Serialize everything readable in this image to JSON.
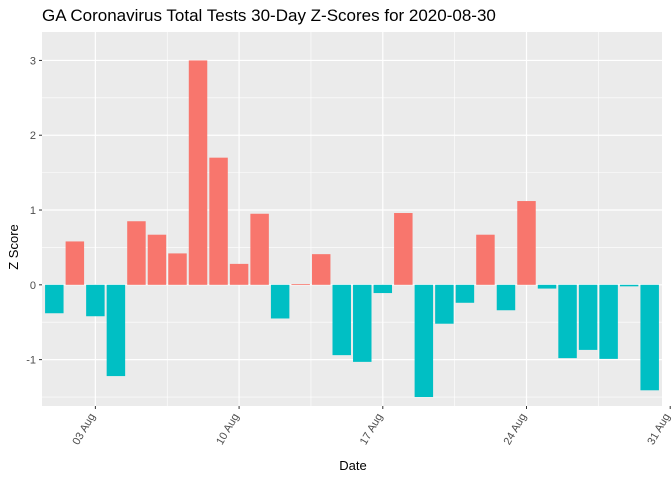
{
  "chart_data": {
    "type": "bar",
    "title": "GA Coronavirus Total Tests 30-Day Z-Scores for 2020-08-30",
    "xlabel": "Date",
    "ylabel": "Z Score",
    "x_tick_labels": [
      "03 Aug",
      "10 Aug",
      "17 Aug",
      "24 Aug",
      "31 Aug"
    ],
    "y_tick_labels": [
      "-1",
      "0",
      "1",
      "2",
      "3"
    ],
    "ylim": [
      -1.62,
      3.38
    ],
    "grid": true,
    "legend": "none",
    "colors": {
      "positive": "#F8766D",
      "negative": "#00BFC4",
      "panel": "#EBEBEB",
      "grid": "#FFFFFF"
    },
    "x": [
      "2020-08-01",
      "2020-08-02",
      "2020-08-03",
      "2020-08-04",
      "2020-08-05",
      "2020-08-06",
      "2020-08-07",
      "2020-08-08",
      "2020-08-09",
      "2020-08-10",
      "2020-08-11",
      "2020-08-12",
      "2020-08-13",
      "2020-08-14",
      "2020-08-15",
      "2020-08-16",
      "2020-08-17",
      "2020-08-18",
      "2020-08-19",
      "2020-08-20",
      "2020-08-21",
      "2020-08-22",
      "2020-08-23",
      "2020-08-24",
      "2020-08-25",
      "2020-08-26",
      "2020-08-27",
      "2020-08-28",
      "2020-08-29",
      "2020-08-30"
    ],
    "values": [
      -0.38,
      0.58,
      -0.42,
      -1.22,
      0.85,
      0.67,
      0.42,
      3.0,
      1.7,
      0.28,
      0.95,
      -0.45,
      0.01,
      0.41,
      -0.94,
      -1.03,
      -0.11,
      0.96,
      -1.5,
      -0.52,
      -0.24,
      0.67,
      -0.34,
      1.12,
      -0.05,
      -0.98,
      -0.87,
      -0.99,
      -0.02,
      -1.41
    ]
  }
}
